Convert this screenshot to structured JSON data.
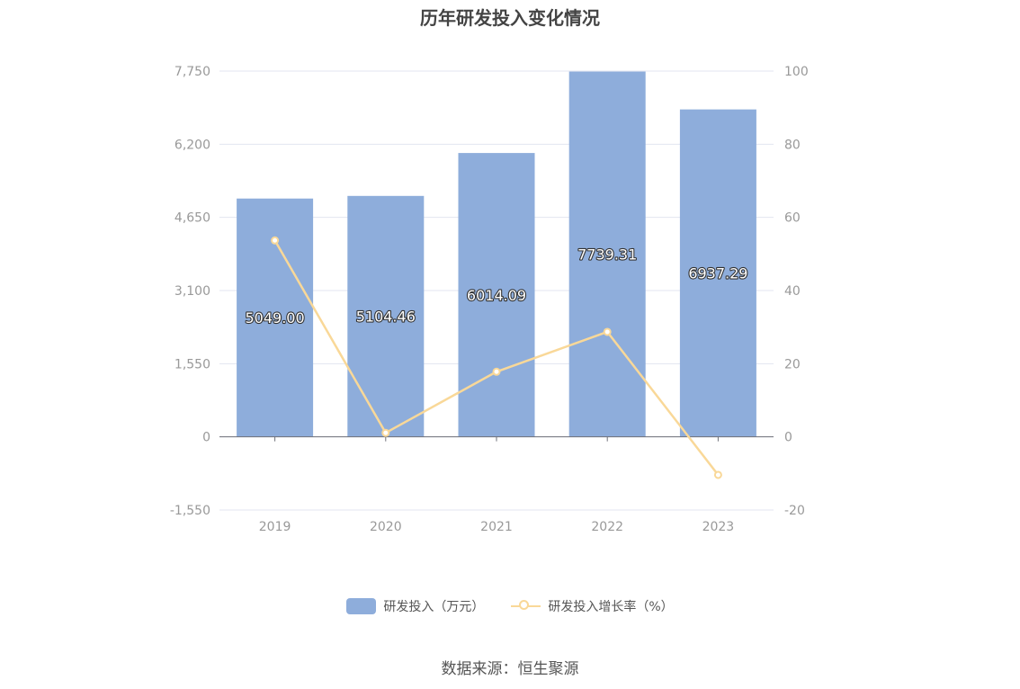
{
  "chart_data": {
    "type": "bar",
    "title": "历年研发投入变化情况",
    "categories": [
      "2019",
      "2020",
      "2021",
      "2022",
      "2023"
    ],
    "series": [
      {
        "name": "研发投入（万元）",
        "type": "bar",
        "axis": "left",
        "values": [
          5049.0,
          5104.46,
          6014.09,
          7739.31,
          6937.29
        ],
        "labels": [
          "5049.00",
          "5104.46",
          "6014.09",
          "7739.31",
          "6937.29"
        ]
      },
      {
        "name": "研发投入增长率（%）",
        "type": "line",
        "axis": "right",
        "values": [
          53.7,
          1.1,
          17.8,
          28.7,
          -10.4
        ]
      }
    ],
    "y_left": {
      "min": -1550,
      "max": 7750,
      "ticks": [
        "7,750",
        "6,200",
        "4,650",
        "3,100",
        "1,550",
        "0",
        "-1,550"
      ]
    },
    "y_right": {
      "min": -20,
      "max": 100,
      "ticks": [
        "100",
        "80",
        "60",
        "40",
        "20",
        "0",
        "-20"
      ]
    },
    "grid": true,
    "legend_position": "bottom-center",
    "colors": {
      "bar": "#8eaddb",
      "line": "#f9d898",
      "grid": "#e3e6f0",
      "axis": "#6e7079",
      "tick_text": "#999999"
    }
  },
  "source_note": "数据来源：恒生聚源"
}
